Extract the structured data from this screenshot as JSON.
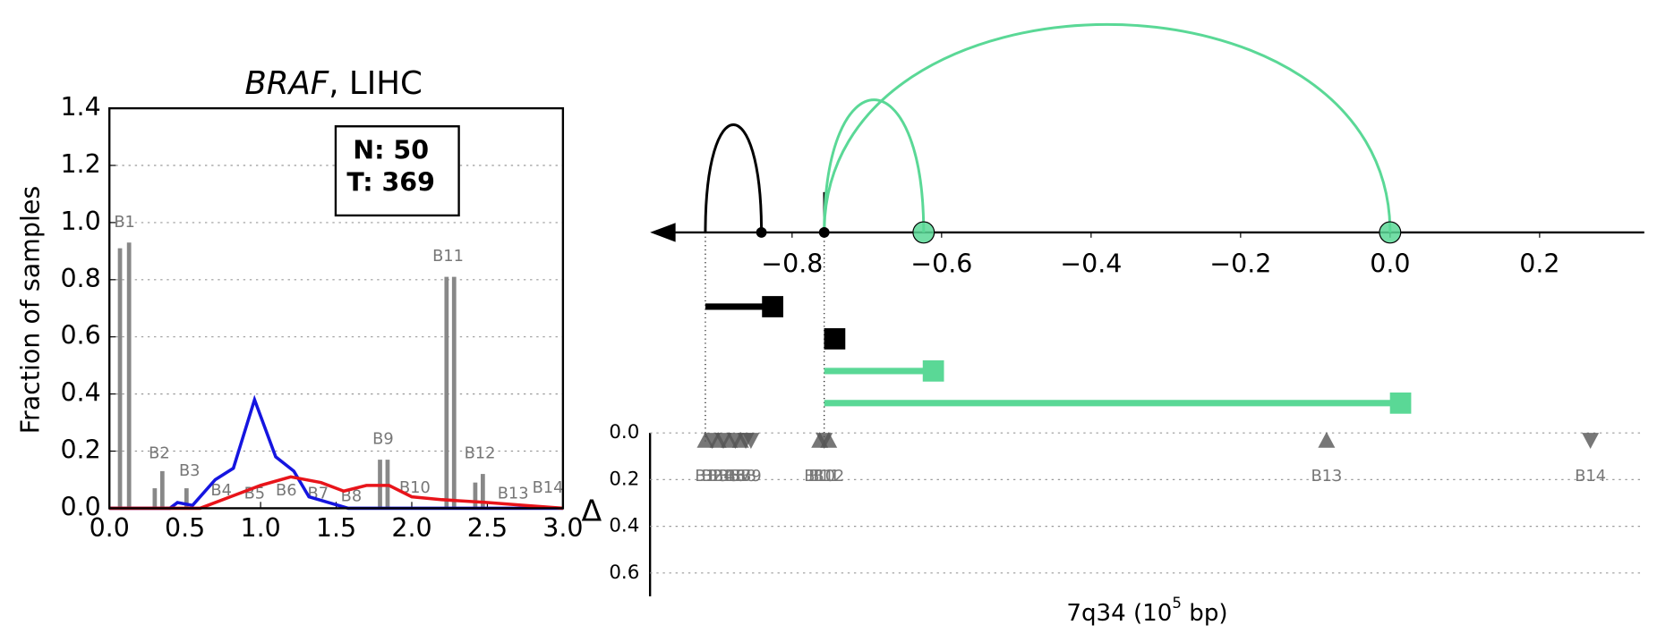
{
  "chart_data": [
    {
      "type": "line",
      "title_gene": "BRAF",
      "title_rest": ", LIHC",
      "ylabel": "Fraction of samples",
      "annotations": [
        "N: 50",
        "T: 369"
      ],
      "xlim": [
        0,
        3
      ],
      "xticks": [
        {
          "value": 0,
          "label": "0.0"
        },
        0.5,
        {
          "value": 1,
          "label": "1.0"
        },
        1.5,
        {
          "value": 2,
          "label": "2.0"
        },
        2.5,
        {
          "value": 3,
          "label": "3.0"
        }
      ],
      "ylim": [
        0,
        1.4
      ],
      "yticks": [
        {
          "value": 0,
          "label": "0.0"
        },
        0.2,
        0.4,
        0.6,
        0.8,
        {
          "value": 1,
          "label": "1.0"
        },
        1.2,
        1.4
      ],
      "grid": true,
      "bars": {
        "color": "#888888",
        "x": [
          0.07,
          0.13,
          0.3,
          0.35,
          0.51,
          1.79,
          1.84,
          2.23,
          2.28,
          2.42,
          2.47
        ],
        "values": [
          0.91,
          0.93,
          0.07,
          0.13,
          0.07,
          0.17,
          0.17,
          0.81,
          0.81,
          0.09,
          0.12
        ]
      },
      "bar_labels": {
        "labels": [
          "B1",
          "B2",
          "B3",
          "B4",
          "B5",
          "B6",
          "B7",
          "B8",
          "B9",
          "B10",
          "B11",
          "B12",
          "B13",
          "B14"
        ],
        "x": [
          0.1,
          0.33,
          0.53,
          0.74,
          0.96,
          1.17,
          1.38,
          1.6,
          1.81,
          2.02,
          2.24,
          2.45,
          2.67,
          2.9
        ],
        "y": [
          1.0,
          0.19,
          0.13,
          0.06,
          0.05,
          0.06,
          0.05,
          0.04,
          0.24,
          0.07,
          0.88,
          0.19,
          0.05,
          0.07
        ]
      },
      "lines": [
        {
          "color": "#1515e0",
          "x": [
            0,
            0.4,
            0.45,
            0.55,
            0.7,
            0.82,
            0.96,
            1.1,
            1.22,
            1.32,
            1.45,
            1.58,
            3.0
          ],
          "values": [
            0,
            0,
            0.02,
            0.01,
            0.1,
            0.14,
            0.38,
            0.18,
            0.13,
            0.04,
            0.02,
            0,
            0
          ]
        },
        {
          "color": "#e8141a",
          "x": [
            0,
            0.6,
            0.8,
            1.0,
            1.2,
            1.4,
            1.55,
            1.7,
            1.85,
            2.0,
            2.2,
            2.5,
            2.75,
            3.0
          ],
          "values": [
            0,
            0,
            0.04,
            0.08,
            0.11,
            0.09,
            0.06,
            0.08,
            0.08,
            0.04,
            0.03,
            0.02,
            0.01,
            0
          ]
        }
      ]
    },
    {
      "type": "breakpoints",
      "xlabel_parts": [
        "7q34 (10",
        "5",
        " bp)"
      ],
      "xlim": [
        -0.99,
        0.34
      ],
      "xticks": [
        {
          "value": -0.8,
          "label": "−0.8"
        },
        {
          "value": -0.6,
          "label": "−0.6"
        },
        {
          "value": -0.4,
          "label": "−0.4"
        },
        {
          "value": -0.2,
          "label": "−0.2"
        },
        {
          "value": 0,
          "label": "0.0"
        },
        0.2
      ],
      "links": [
        {
          "color": "#000000",
          "start": -0.916,
          "end": -0.841
        },
        {
          "color": "#5ad896",
          "start": -0.757,
          "end": -0.624
        },
        {
          "color": "#5ad896",
          "start": -0.757,
          "end": 0.0
        }
      ],
      "points": {
        "x": [
          -0.841,
          -0.757,
          -0.624,
          0.0
        ],
        "color": [
          "#000000",
          "#000000",
          "#5ad896",
          "#5ad896"
        ]
      },
      "segments": [
        {
          "color": "#000000",
          "start": -0.916,
          "end": -0.826
        },
        {
          "color": "#000000",
          "start": -0.757,
          "end": -0.743
        },
        {
          "color": "#5ad896",
          "start": -0.757,
          "end": -0.611
        },
        {
          "color": "#5ad896",
          "start": -0.757,
          "end": 0.014
        }
      ],
      "delta": {
        "ylabel": "Δ",
        "ylim": [
          0,
          0.7
        ],
        "yticks": [
          {
            "value": 0,
            "label": "0.0"
          },
          0.2,
          0.4,
          0.6
        ],
        "labels": [
          "B1",
          "B2",
          "B3",
          "B4",
          "B5",
          "B6",
          "B7",
          "B8",
          "B9",
          "B10",
          "B11",
          "B12",
          "B13",
          "B14"
        ],
        "x": [
          -0.916,
          -0.907,
          -0.899,
          -0.892,
          -0.884,
          -0.876,
          -0.869,
          -0.862,
          -0.855,
          -0.763,
          -0.757,
          -0.751,
          -0.085,
          0.268
        ],
        "values": [
          0,
          0,
          0,
          0,
          0,
          0,
          0,
          0,
          0,
          0,
          0,
          0,
          0,
          0
        ],
        "direction": [
          "up",
          "down",
          "up",
          "down",
          "up",
          "down",
          "up",
          "down",
          "down",
          "up",
          "down",
          "up",
          "up",
          "down"
        ],
        "color": "#555555"
      }
    }
  ]
}
